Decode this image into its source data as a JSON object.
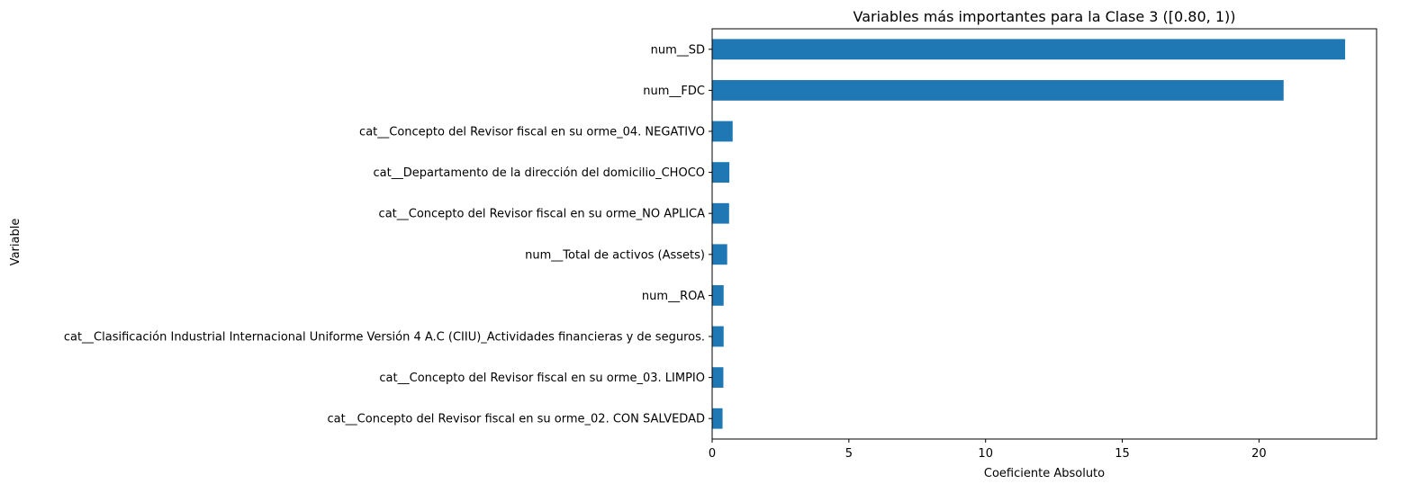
{
  "chart_data": {
    "type": "bar",
    "orientation": "horizontal",
    "title": "Variables más importantes para la Clase 3 ([0.80, 1))",
    "xlabel": "Coeficiente Absoluto",
    "ylabel": "Variable",
    "categories": [
      "num__SD",
      "num__FDC",
      "cat__Concepto del Revisor fiscal en su orme_04. NEGATIVO",
      "cat__Departamento de la dirección del domicilio_CHOCO",
      "cat__Concepto del Revisor fiscal en su orme_NO APLICA",
      "num__Total de activos (Assets)",
      "num__ROA",
      "cat__Clasificación Industrial Internacional Uniforme Versión 4 A.C (CIIU)_Actividades financieras y de seguros.",
      "cat__Concepto del Revisor fiscal en su orme_03. LIMPIO",
      "cat__Concepto del Revisor fiscal en su orme_02. CON SALVEDAD"
    ],
    "values": [
      23.15,
      20.9,
      0.75,
      0.63,
      0.62,
      0.55,
      0.42,
      0.42,
      0.41,
      0.38
    ],
    "xticks": [
      "0",
      "5",
      "10",
      "15",
      "20"
    ],
    "xlim": [
      0,
      24.3
    ],
    "bar_color": "#1f77b4",
    "grid": false,
    "legend": "none"
  }
}
